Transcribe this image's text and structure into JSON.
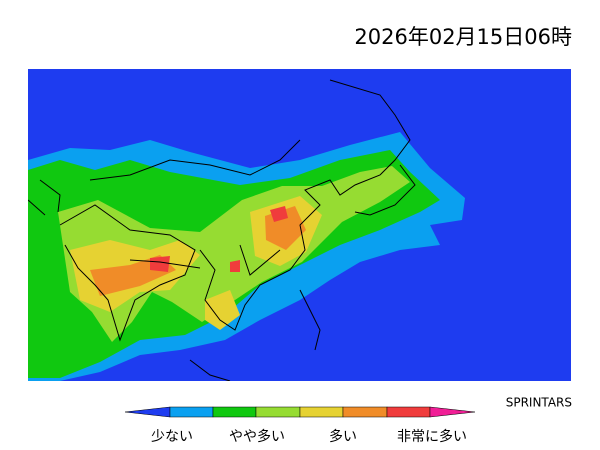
{
  "timestamp": "2026年02月15日06時",
  "credit": "SPRINTARS",
  "legend": {
    "labels": [
      "少ない",
      "やや多い",
      "多い",
      "非常に多い"
    ]
  }
}
